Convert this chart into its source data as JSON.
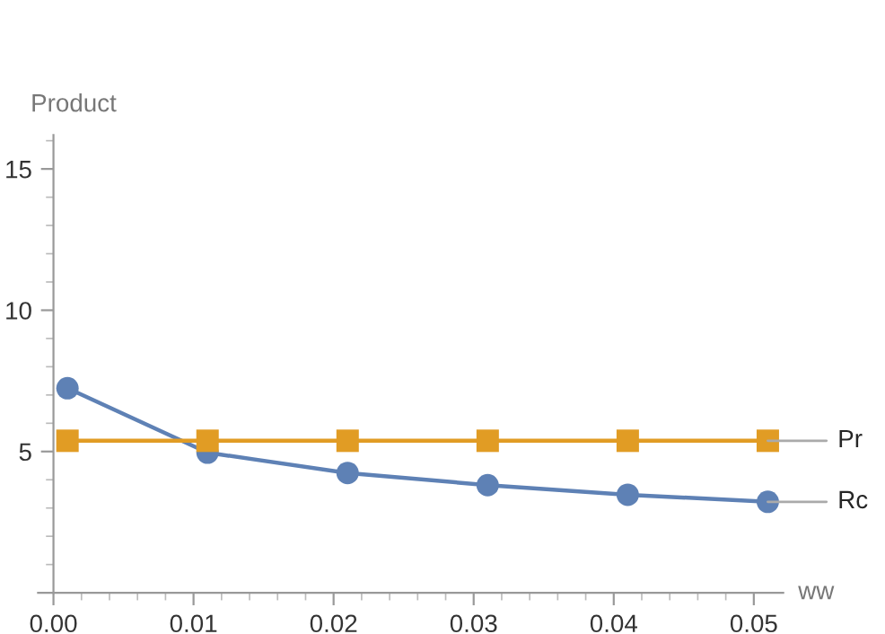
{
  "chart_data": {
    "type": "line",
    "xlabel": "ww",
    "ylabel": "Product",
    "x": [
      0.001,
      0.011,
      0.021,
      0.031,
      0.041,
      0.051
    ],
    "series": [
      {
        "name": "Rc",
        "color": "#5e81b5",
        "marker": "circle",
        "values": [
          7.24,
          4.96,
          4.24,
          3.81,
          3.47,
          3.22
        ]
      },
      {
        "name": "Pr",
        "color": "#e19c24",
        "marker": "square",
        "values": [
          5.38,
          5.38,
          5.38,
          5.38,
          5.38,
          5.38
        ]
      }
    ],
    "xlim": [
      -0.0011,
      0.0521
    ],
    "ylim": [
      0,
      16.2
    ],
    "xticks": [
      {
        "value": 0,
        "label": "0.00"
      },
      {
        "value": 0.002,
        "label": null
      },
      {
        "value": 0.004,
        "label": null
      },
      {
        "value": 0.006,
        "label": null
      },
      {
        "value": 0.008,
        "label": null
      },
      {
        "value": 0.01,
        "label": "0.01"
      },
      {
        "value": 0.012,
        "label": null
      },
      {
        "value": 0.014,
        "label": null
      },
      {
        "value": 0.016,
        "label": null
      },
      {
        "value": 0.018,
        "label": null
      },
      {
        "value": 0.02,
        "label": "0.02"
      },
      {
        "value": 0.022,
        "label": null
      },
      {
        "value": 0.024,
        "label": null
      },
      {
        "value": 0.026,
        "label": null
      },
      {
        "value": 0.028,
        "label": null
      },
      {
        "value": 0.03,
        "label": "0.03"
      },
      {
        "value": 0.032,
        "label": null
      },
      {
        "value": 0.034,
        "label": null
      },
      {
        "value": 0.036,
        "label": null
      },
      {
        "value": 0.038,
        "label": null
      },
      {
        "value": 0.04,
        "label": "0.04"
      },
      {
        "value": 0.042,
        "label": null
      },
      {
        "value": 0.044,
        "label": null
      },
      {
        "value": 0.046,
        "label": null
      },
      {
        "value": 0.048,
        "label": null
      },
      {
        "value": 0.05,
        "label": "0.05"
      }
    ],
    "yticks": [
      {
        "value": 1,
        "label": null
      },
      {
        "value": 2,
        "label": null
      },
      {
        "value": 3,
        "label": null
      },
      {
        "value": 4,
        "label": null
      },
      5,
      {
        "value": 6,
        "label": null
      },
      {
        "value": 7,
        "label": null
      },
      {
        "value": 8,
        "label": null
      },
      {
        "value": 9,
        "label": null
      },
      10,
      {
        "value": 11,
        "label": null
      },
      {
        "value": 12,
        "label": null
      },
      {
        "value": 13,
        "label": null
      },
      {
        "value": 14,
        "label": null
      },
      15,
      {
        "value": 16,
        "label": null
      }
    ],
    "grid": false,
    "legend": false,
    "line_style": "solid"
  }
}
